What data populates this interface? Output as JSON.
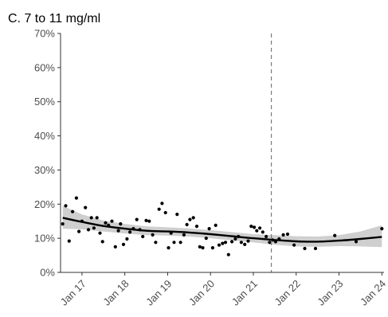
{
  "chart_data": {
    "type": "scatter",
    "title": "C. 7 to 11 mg/ml",
    "xlabel": "",
    "ylabel": "",
    "xlim": [
      2016.5,
      2024.05
    ],
    "ylim": [
      0,
      70
    ],
    "grid": false,
    "y_ticks": [
      0,
      10,
      20,
      30,
      40,
      50,
      60,
      70
    ],
    "y_tick_labels": [
      "0%",
      "10%",
      "20%",
      "30%",
      "40%",
      "50%",
      "60%",
      "70%"
    ],
    "x_ticks": [
      2017,
      2018,
      2019,
      2020,
      2021,
      2022,
      2023,
      2024
    ],
    "x_tick_labels": [
      "Jan 17",
      "Jan 18",
      "Jan 19",
      "Jan 20",
      "Jan 21",
      "Jan 22",
      "Jan 23",
      "Jan 24"
    ],
    "reference_line_x": 2021.42,
    "points": [
      [
        2016.55,
        14.2
      ],
      [
        2016.62,
        19.5
      ],
      [
        2016.7,
        9.2
      ],
      [
        2016.78,
        17.8
      ],
      [
        2016.87,
        21.8
      ],
      [
        2016.93,
        12.0
      ],
      [
        2017.0,
        15.0
      ],
      [
        2017.08,
        19.0
      ],
      [
        2017.15,
        12.5
      ],
      [
        2017.22,
        16.0
      ],
      [
        2017.28,
        13.0
      ],
      [
        2017.35,
        16.0
      ],
      [
        2017.42,
        11.5
      ],
      [
        2017.48,
        9.0
      ],
      [
        2017.55,
        14.5
      ],
      [
        2017.62,
        13.8
      ],
      [
        2017.7,
        15.0
      ],
      [
        2017.78,
        7.5
      ],
      [
        2017.85,
        12.2
      ],
      [
        2017.9,
        14.2
      ],
      [
        2017.97,
        8.2
      ],
      [
        2018.05,
        9.8
      ],
      [
        2018.12,
        11.8
      ],
      [
        2018.2,
        12.8
      ],
      [
        2018.28,
        15.5
      ],
      [
        2018.35,
        12.5
      ],
      [
        2018.42,
        10.5
      ],
      [
        2018.5,
        15.2
      ],
      [
        2018.57,
        15.0
      ],
      [
        2018.65,
        11.0
      ],
      [
        2018.72,
        8.8
      ],
      [
        2018.8,
        18.5
      ],
      [
        2018.87,
        20.2
      ],
      [
        2018.95,
        17.5
      ],
      [
        2019.02,
        7.2
      ],
      [
        2019.08,
        11.5
      ],
      [
        2019.15,
        8.8
      ],
      [
        2019.22,
        17.0
      ],
      [
        2019.3,
        8.8
      ],
      [
        2019.38,
        11.0
      ],
      [
        2019.45,
        14.0
      ],
      [
        2019.52,
        15.5
      ],
      [
        2019.6,
        16.0
      ],
      [
        2019.68,
        13.5
      ],
      [
        2019.75,
        7.5
      ],
      [
        2019.82,
        7.2
      ],
      [
        2019.9,
        10.0
      ],
      [
        2019.97,
        12.8
      ],
      [
        2020.05,
        7.2
      ],
      [
        2020.12,
        13.8
      ],
      [
        2020.2,
        8.0
      ],
      [
        2020.28,
        8.5
      ],
      [
        2020.35,
        8.8
      ],
      [
        2020.42,
        5.2
      ],
      [
        2020.5,
        9.0
      ],
      [
        2020.58,
        9.8
      ],
      [
        2020.65,
        10.5
      ],
      [
        2020.72,
        8.8
      ],
      [
        2020.8,
        8.2
      ],
      [
        2020.88,
        9.2
      ],
      [
        2020.95,
        13.5
      ],
      [
        2021.02,
        13.2
      ],
      [
        2021.08,
        12.2
      ],
      [
        2021.15,
        13.0
      ],
      [
        2021.22,
        11.8
      ],
      [
        2021.3,
        10.5
      ],
      [
        2021.38,
        8.8
      ],
      [
        2021.45,
        9.5
      ],
      [
        2021.52,
        9.0
      ],
      [
        2021.6,
        9.8
      ],
      [
        2021.7,
        11.0
      ],
      [
        2021.8,
        11.2
      ],
      [
        2021.95,
        8.0
      ],
      [
        2022.2,
        7.0
      ],
      [
        2022.45,
        7.0
      ],
      [
        2022.9,
        10.8
      ],
      [
        2023.4,
        9.0
      ],
      [
        2024.0,
        12.8
      ]
    ],
    "trend": [
      [
        2016.55,
        16.0
      ],
      [
        2017.0,
        14.8
      ],
      [
        2017.5,
        13.6
      ],
      [
        2018.0,
        12.8
      ],
      [
        2018.5,
        12.2
      ],
      [
        2019.0,
        12.0
      ],
      [
        2019.5,
        11.7
      ],
      [
        2020.0,
        11.2
      ],
      [
        2020.5,
        10.6
      ],
      [
        2021.0,
        10.0
      ],
      [
        2021.5,
        9.5
      ],
      [
        2022.0,
        9.1
      ],
      [
        2022.5,
        9.0
      ],
      [
        2023.0,
        9.3
      ],
      [
        2023.5,
        9.8
      ],
      [
        2024.0,
        10.4
      ]
    ],
    "trend_lower": [
      [
        2016.55,
        12.8
      ],
      [
        2017.0,
        12.6
      ],
      [
        2017.5,
        12.0
      ],
      [
        2018.0,
        11.4
      ],
      [
        2018.5,
        10.9
      ],
      [
        2019.0,
        10.8
      ],
      [
        2019.5,
        10.5
      ],
      [
        2020.0,
        10.0
      ],
      [
        2020.5,
        9.4
      ],
      [
        2021.0,
        8.8
      ],
      [
        2021.5,
        8.1
      ],
      [
        2022.0,
        7.6
      ],
      [
        2022.5,
        7.5
      ],
      [
        2023.0,
        7.7
      ],
      [
        2023.5,
        7.6
      ],
      [
        2024.0,
        7.4
      ]
    ],
    "trend_upper": [
      [
        2016.55,
        19.5
      ],
      [
        2017.0,
        17.0
      ],
      [
        2017.5,
        15.2
      ],
      [
        2018.0,
        14.2
      ],
      [
        2018.5,
        13.5
      ],
      [
        2019.0,
        13.2
      ],
      [
        2019.5,
        12.9
      ],
      [
        2020.0,
        12.4
      ],
      [
        2020.5,
        11.8
      ],
      [
        2021.0,
        11.2
      ],
      [
        2021.5,
        10.9
      ],
      [
        2022.0,
        10.6
      ],
      [
        2022.5,
        10.5
      ],
      [
        2023.0,
        10.9
      ],
      [
        2023.5,
        12.0
      ],
      [
        2024.0,
        13.8
      ]
    ],
    "colors": {
      "points": "#000000",
      "trend": "#000000",
      "band": "#bfbfbf",
      "reference_line": "#7a7a7a"
    }
  }
}
